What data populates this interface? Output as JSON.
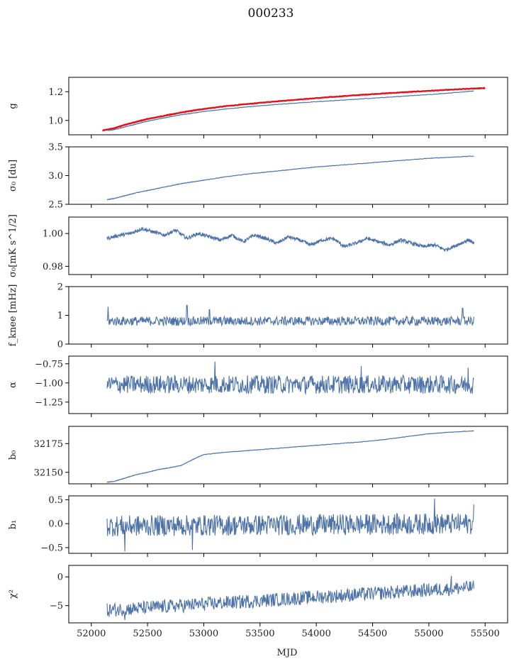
{
  "figure": {
    "title": "000233",
    "xlabel": "MJD"
  },
  "chart_data": [
    {
      "type": "line",
      "ylabel": "g",
      "xlim": [
        51800,
        55700
      ],
      "ylim": [
        0.9,
        1.3
      ],
      "yticks": [
        1.0,
        1.2
      ],
      "ytick_labels": [
        "1.0",
        "1.2"
      ],
      "series": [
        {
          "color": "#e0141c",
          "x": [
            52100,
            52200,
            52300,
            52400,
            52500,
            52600,
            52700,
            52800,
            52900,
            53000,
            53200,
            53400,
            53600,
            53800,
            54000,
            54200,
            54400,
            54600,
            54800,
            55000,
            55200,
            55400,
            55500
          ],
          "values": [
            0.93,
            0.945,
            0.97,
            0.99,
            1.01,
            1.025,
            1.04,
            1.055,
            1.068,
            1.08,
            1.1,
            1.115,
            1.13,
            1.143,
            1.155,
            1.167,
            1.178,
            1.188,
            1.197,
            1.206,
            1.214,
            1.222,
            1.225
          ]
        },
        {
          "color": "#4c72a8",
          "x": [
            52140,
            52200,
            52300,
            52400,
            52500,
            52600,
            52700,
            52800,
            52900,
            53000,
            53200,
            53400,
            53600,
            53800,
            54000,
            54200,
            54400,
            54600,
            54800,
            55000,
            55200,
            55400
          ],
          "values": [
            0.93,
            0.935,
            0.955,
            0.975,
            0.995,
            1.01,
            1.025,
            1.04,
            1.05,
            1.062,
            1.08,
            1.095,
            1.108,
            1.12,
            1.13,
            1.14,
            1.15,
            1.16,
            1.17,
            1.18,
            1.192,
            1.205
          ]
        }
      ]
    },
    {
      "type": "line",
      "ylabel": "σ₀ [du]",
      "xlim": [
        51800,
        55700
      ],
      "ylim": [
        2.5,
        3.5
      ],
      "yticks": [
        2.5,
        3.0,
        3.5
      ],
      "ytick_labels": [
        "2.5",
        "3.0",
        "3.5"
      ],
      "series": [
        {
          "color": "#4c72a8",
          "x": [
            52140,
            52200,
            52300,
            52400,
            52500,
            52600,
            52700,
            52800,
            52900,
            53000,
            53200,
            53400,
            53600,
            53800,
            54000,
            54200,
            54400,
            54600,
            54800,
            55000,
            55200,
            55400
          ],
          "values": [
            2.58,
            2.6,
            2.65,
            2.7,
            2.74,
            2.78,
            2.82,
            2.86,
            2.89,
            2.92,
            2.98,
            3.03,
            3.07,
            3.11,
            3.15,
            3.18,
            3.21,
            3.24,
            3.27,
            3.3,
            3.32,
            3.34
          ]
        }
      ]
    },
    {
      "type": "line",
      "ylabel": "σ₀[mK s^1/2]",
      "xlim": [
        51800,
        55700
      ],
      "ylim": [
        0.975,
        1.01
      ],
      "yticks": [
        0.98,
        1.0
      ],
      "ytick_labels": [
        "0.98",
        "1.00"
      ],
      "series": [
        {
          "color": "#4c72a8",
          "x": [
            52140,
            52250,
            52350,
            52450,
            52550,
            52650,
            52750,
            52850,
            52950,
            53050,
            53150,
            53250,
            53350,
            53450,
            53550,
            53650,
            53750,
            53850,
            53950,
            54050,
            54150,
            54250,
            54350,
            54450,
            54550,
            54650,
            54750,
            54850,
            54950,
            55050,
            55150,
            55250,
            55350,
            55400
          ],
          "values": [
            0.997,
            0.999,
            1.0,
            1.003,
            1.001,
            0.999,
            1.002,
            0.997,
            1.0,
            0.998,
            0.996,
            0.999,
            0.995,
            0.999,
            0.997,
            0.994,
            0.998,
            0.996,
            0.993,
            0.996,
            0.997,
            0.992,
            0.994,
            0.997,
            0.995,
            0.993,
            0.996,
            0.994,
            0.992,
            0.993,
            0.99,
            0.993,
            0.996,
            0.994
          ]
        }
      ]
    },
    {
      "type": "line",
      "ylabel": "f_knee [mHz]",
      "xlim": [
        51800,
        55700
      ],
      "ylim": [
        0,
        2
      ],
      "yticks": [
        0,
        1,
        2
      ],
      "ytick_labels": [
        "0",
        "1",
        "2"
      ],
      "noise": {
        "mean": 0.8,
        "amplitude": 0.16,
        "spikes": [
          [
            52150,
            1.3
          ],
          [
            52850,
            1.35
          ],
          [
            53050,
            1.2
          ],
          [
            55300,
            1.25
          ]
        ]
      }
    },
    {
      "type": "line",
      "ylabel": "α",
      "xlim": [
        51800,
        55700
      ],
      "ylim": [
        -1.4,
        -0.65
      ],
      "yticks": [
        -1.25,
        -1.0,
        -0.75
      ],
      "ytick_labels": [
        "−1.25",
        "−1.00",
        "−0.75"
      ],
      "noise": {
        "mean": -1.02,
        "amplitude": 0.12,
        "spikes": [
          [
            52130,
            -1.28
          ],
          [
            53100,
            -0.72
          ],
          [
            54400,
            -0.78
          ],
          [
            55350,
            -0.8
          ]
        ]
      }
    },
    {
      "type": "line",
      "ylabel": "b₀",
      "xlim": [
        51800,
        55700
      ],
      "ylim": [
        32140,
        32190
      ],
      "yticks": [
        32150,
        32175
      ],
      "ytick_labels": [
        "32150",
        "32175"
      ],
      "series": [
        {
          "color": "#4c72a8",
          "x": [
            52140,
            52200,
            52300,
            52400,
            52500,
            52600,
            52700,
            52800,
            52900,
            53000,
            53200,
            53400,
            53600,
            53800,
            54000,
            54200,
            54400,
            54600,
            54800,
            55000,
            55200,
            55400
          ],
          "values": [
            32141.5,
            32142,
            32145,
            32148,
            32150,
            32152.5,
            32154,
            32156,
            32161,
            32165.5,
            32167.5,
            32169,
            32170.5,
            32172,
            32173.5,
            32175,
            32176.5,
            32178.5,
            32181,
            32183.5,
            32185,
            32186
          ]
        }
      ]
    },
    {
      "type": "line",
      "ylabel": "b₁",
      "xlim": [
        51800,
        55700
      ],
      "ylim": [
        -0.62,
        0.58
      ],
      "yticks": [
        -0.5,
        0.0,
        0.5
      ],
      "ytick_labels": [
        "−0.5",
        "0.0",
        "0.5"
      ],
      "noise": {
        "mean": -0.05,
        "trend_end": 0.0,
        "amplitude": 0.22,
        "spikes": [
          [
            52300,
            -0.58
          ],
          [
            52900,
            -0.55
          ],
          [
            55050,
            0.52
          ],
          [
            55400,
            0.4
          ]
        ]
      }
    },
    {
      "type": "line",
      "ylabel": "χ²",
      "xlim": [
        51800,
        55700
      ],
      "ylim": [
        -8,
        2
      ],
      "yticks": [
        -5,
        0
      ],
      "ytick_labels": [
        "−5",
        "0"
      ],
      "noise": {
        "mean": -5.8,
        "trend_end": -1.8,
        "amplitude": 1.2,
        "spikes": [
          [
            52300,
            -7.5
          ],
          [
            55200,
            0.2
          ]
        ]
      }
    }
  ],
  "xticks": [
    52000,
    52500,
    53000,
    53500,
    54000,
    54500,
    55000,
    55500
  ],
  "xtick_labels": [
    "52000",
    "52500",
    "53000",
    "53500",
    "54000",
    "54500",
    "55000",
    "55500"
  ]
}
